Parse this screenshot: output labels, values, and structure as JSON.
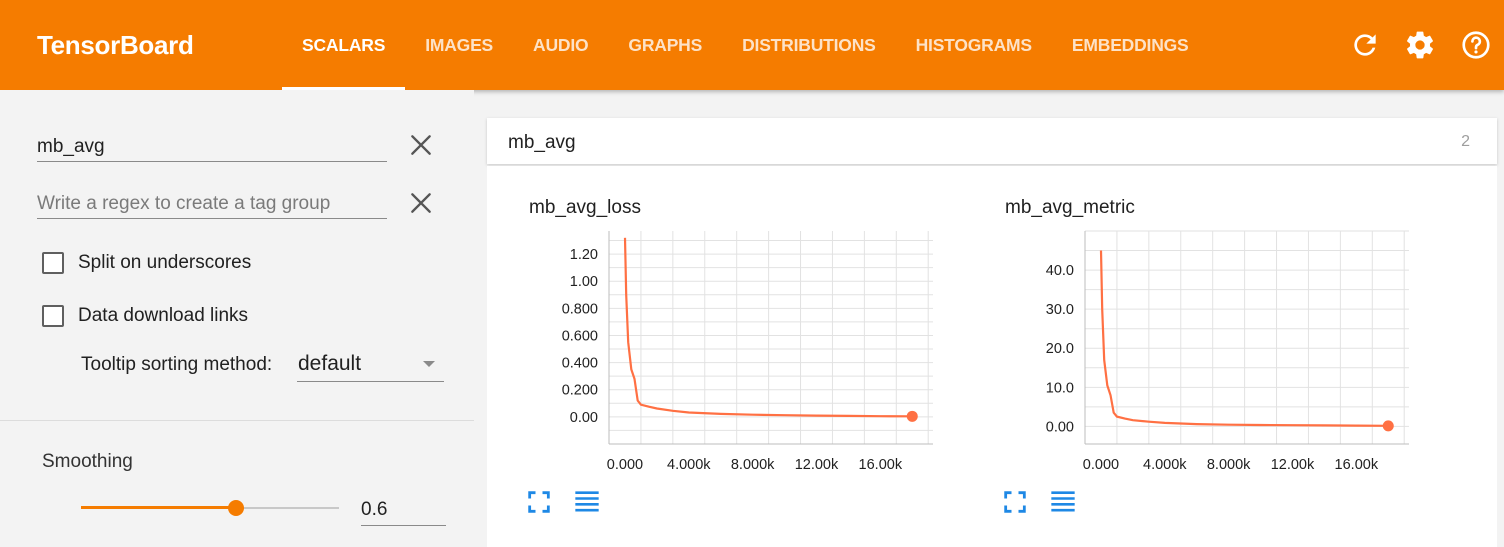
{
  "header": {
    "brand": "TensorBoard",
    "tabs": [
      {
        "label": "SCALARS",
        "active": true
      },
      {
        "label": "IMAGES",
        "active": false
      },
      {
        "label": "AUDIO",
        "active": false
      },
      {
        "label": "GRAPHS",
        "active": false
      },
      {
        "label": "DISTRIBUTIONS",
        "active": false
      },
      {
        "label": "HISTOGRAMS",
        "active": false
      },
      {
        "label": "EMBEDDINGS",
        "active": false
      }
    ],
    "icons": [
      "refresh-icon",
      "settings-icon",
      "help-icon"
    ],
    "background_color": "#f57c00"
  },
  "sidebar": {
    "filter_value": "mb_avg",
    "tag_group_placeholder": "Write a regex to create a tag group",
    "split_label": "Split on underscores",
    "split_checked": false,
    "download_label": "Data download links",
    "download_checked": false,
    "tooltip_label": "Tooltip sorting method:",
    "tooltip_value": "default",
    "smoothing_label": "Smoothing",
    "smoothing_value": "0.6",
    "smoothing_fraction": 0.6
  },
  "group": {
    "title": "mb_avg",
    "count": "2"
  },
  "chart_data": [
    {
      "type": "line",
      "title": "mb_avg_loss",
      "xlim": [
        -1000,
        19300
      ],
      "ylim": [
        -0.2,
        1.37
      ],
      "xticks": [
        0,
        4000,
        8000,
        12000,
        16000
      ],
      "xtick_labels": [
        "0.000",
        "4.000k",
        "8.000k",
        "12.00k",
        "16.00k"
      ],
      "yticks": [
        0,
        0.2,
        0.4,
        0.6,
        0.8,
        1.0,
        1.2
      ],
      "ytick_labels": [
        "0.00",
        "0.200",
        "0.400",
        "0.600",
        "0.800",
        "1.00",
        "1.20"
      ],
      "grid": true,
      "color": "#ff7043",
      "series": [
        {
          "x": [
            0,
            80,
            200,
            400,
            600,
            800,
            1000,
            1500,
            2000,
            3000,
            4000,
            6000,
            8000,
            10000,
            12000,
            14000,
            16000,
            18000
          ],
          "y": [
            1.32,
            0.9,
            0.55,
            0.35,
            0.28,
            0.12,
            0.09,
            0.075,
            0.062,
            0.045,
            0.032,
            0.022,
            0.016,
            0.012,
            0.009,
            0.007,
            0.005,
            0.004
          ]
        }
      ]
    },
    {
      "type": "line",
      "title": "mb_avg_metric",
      "xlim": [
        -1000,
        19300
      ],
      "ylim": [
        -4.5,
        50
      ],
      "xticks": [
        0,
        4000,
        8000,
        12000,
        16000
      ],
      "xtick_labels": [
        "0.000",
        "4.000k",
        "8.000k",
        "12.00k",
        "16.00k"
      ],
      "yticks": [
        0,
        10,
        20,
        30,
        40
      ],
      "ytick_labels": [
        "0.00",
        "10.0",
        "20.0",
        "30.0",
        "40.0"
      ],
      "grid": true,
      "color": "#ff7043",
      "series": [
        {
          "x": [
            0,
            80,
            200,
            400,
            600,
            800,
            1000,
            1500,
            2000,
            3000,
            4000,
            6000,
            8000,
            10000,
            12000,
            14000,
            16000,
            18000
          ],
          "y": [
            45,
            30,
            17,
            10.5,
            8,
            3.5,
            2.5,
            2,
            1.6,
            1.2,
            0.9,
            0.6,
            0.45,
            0.35,
            0.3,
            0.25,
            0.2,
            0.15
          ]
        }
      ]
    }
  ]
}
